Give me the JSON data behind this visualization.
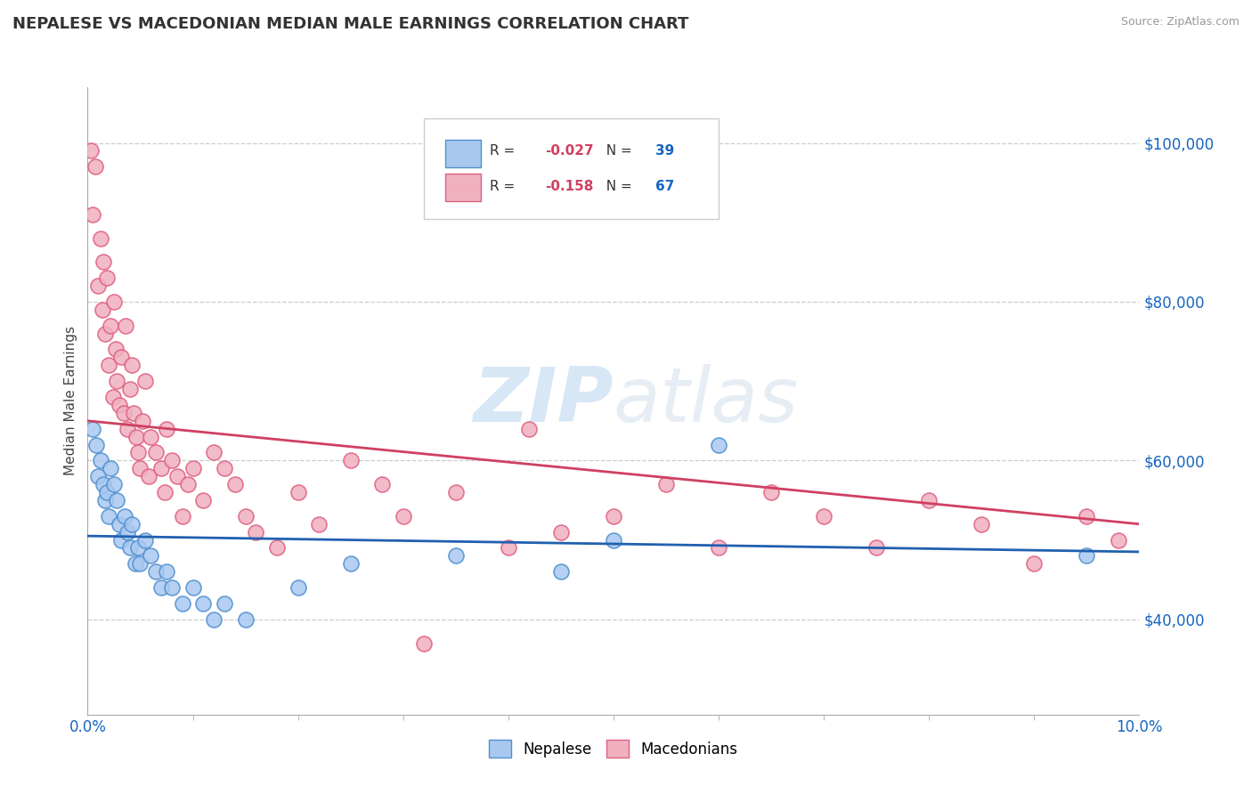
{
  "title": "NEPALESE VS MACEDONIAN MEDIAN MALE EARNINGS CORRELATION CHART",
  "source": "Source: ZipAtlas.com",
  "ylabel": "Median Male Earnings",
  "yticks": [
    40000,
    60000,
    80000,
    100000
  ],
  "ytick_labels": [
    "$40,000",
    "$60,000",
    "$80,000",
    "$100,000"
  ],
  "xmin": 0.0,
  "xmax": 10.0,
  "ymin": 28000,
  "ymax": 107000,
  "nepalese_color": "#a8c8f0",
  "macedonian_color": "#f0b0c0",
  "nepalese_edge_color": "#5090d0",
  "macedonian_edge_color": "#e06080",
  "trend_blue_color": "#2060b0",
  "trend_pink_color": "#d04060",
  "dashed_grid_color": "#cccccc",
  "background_color": "#ffffff",
  "watermark_text": "ZIPatlas",
  "legend_R_color": "#d04060",
  "legend_N_color": "#1565c0",
  "nepalese_R": -0.027,
  "nepalese_N": 39,
  "macedonian_R": -0.158,
  "macedonian_N": 67,
  "nepalese_points": [
    [
      0.05,
      64000
    ],
    [
      0.08,
      62000
    ],
    [
      0.1,
      58000
    ],
    [
      0.12,
      60000
    ],
    [
      0.15,
      57000
    ],
    [
      0.17,
      55000
    ],
    [
      0.18,
      56000
    ],
    [
      0.2,
      53000
    ],
    [
      0.22,
      59000
    ],
    [
      0.25,
      57000
    ],
    [
      0.28,
      55000
    ],
    [
      0.3,
      52000
    ],
    [
      0.32,
      50000
    ],
    [
      0.35,
      53000
    ],
    [
      0.38,
      51000
    ],
    [
      0.4,
      49000
    ],
    [
      0.42,
      52000
    ],
    [
      0.45,
      47000
    ],
    [
      0.48,
      49000
    ],
    [
      0.5,
      47000
    ],
    [
      0.55,
      50000
    ],
    [
      0.6,
      48000
    ],
    [
      0.65,
      46000
    ],
    [
      0.7,
      44000
    ],
    [
      0.75,
      46000
    ],
    [
      0.8,
      44000
    ],
    [
      0.9,
      42000
    ],
    [
      1.0,
      44000
    ],
    [
      1.1,
      42000
    ],
    [
      1.2,
      40000
    ],
    [
      1.3,
      42000
    ],
    [
      1.5,
      40000
    ],
    [
      2.0,
      44000
    ],
    [
      2.5,
      47000
    ],
    [
      3.5,
      48000
    ],
    [
      4.5,
      46000
    ],
    [
      5.0,
      50000
    ],
    [
      6.0,
      62000
    ],
    [
      9.5,
      48000
    ]
  ],
  "macedonian_points": [
    [
      0.03,
      99000
    ],
    [
      0.05,
      91000
    ],
    [
      0.07,
      97000
    ],
    [
      0.1,
      82000
    ],
    [
      0.12,
      88000
    ],
    [
      0.14,
      79000
    ],
    [
      0.15,
      85000
    ],
    [
      0.17,
      76000
    ],
    [
      0.18,
      83000
    ],
    [
      0.2,
      72000
    ],
    [
      0.22,
      77000
    ],
    [
      0.24,
      68000
    ],
    [
      0.25,
      80000
    ],
    [
      0.27,
      74000
    ],
    [
      0.28,
      70000
    ],
    [
      0.3,
      67000
    ],
    [
      0.32,
      73000
    ],
    [
      0.34,
      66000
    ],
    [
      0.36,
      77000
    ],
    [
      0.38,
      64000
    ],
    [
      0.4,
      69000
    ],
    [
      0.42,
      72000
    ],
    [
      0.44,
      66000
    ],
    [
      0.46,
      63000
    ],
    [
      0.48,
      61000
    ],
    [
      0.5,
      59000
    ],
    [
      0.52,
      65000
    ],
    [
      0.55,
      70000
    ],
    [
      0.58,
      58000
    ],
    [
      0.6,
      63000
    ],
    [
      0.65,
      61000
    ],
    [
      0.7,
      59000
    ],
    [
      0.73,
      56000
    ],
    [
      0.75,
      64000
    ],
    [
      0.8,
      60000
    ],
    [
      0.85,
      58000
    ],
    [
      0.9,
      53000
    ],
    [
      0.95,
      57000
    ],
    [
      1.0,
      59000
    ],
    [
      1.1,
      55000
    ],
    [
      1.2,
      61000
    ],
    [
      1.3,
      59000
    ],
    [
      1.4,
      57000
    ],
    [
      1.5,
      53000
    ],
    [
      1.6,
      51000
    ],
    [
      1.8,
      49000
    ],
    [
      2.0,
      56000
    ],
    [
      2.2,
      52000
    ],
    [
      2.5,
      60000
    ],
    [
      2.8,
      57000
    ],
    [
      3.0,
      53000
    ],
    [
      3.2,
      37000
    ],
    [
      3.5,
      56000
    ],
    [
      4.0,
      49000
    ],
    [
      4.2,
      64000
    ],
    [
      4.5,
      51000
    ],
    [
      5.0,
      53000
    ],
    [
      5.5,
      57000
    ],
    [
      6.0,
      49000
    ],
    [
      6.5,
      56000
    ],
    [
      7.0,
      53000
    ],
    [
      7.5,
      49000
    ],
    [
      8.0,
      55000
    ],
    [
      8.5,
      52000
    ],
    [
      9.0,
      47000
    ],
    [
      9.5,
      53000
    ],
    [
      9.8,
      50000
    ]
  ]
}
